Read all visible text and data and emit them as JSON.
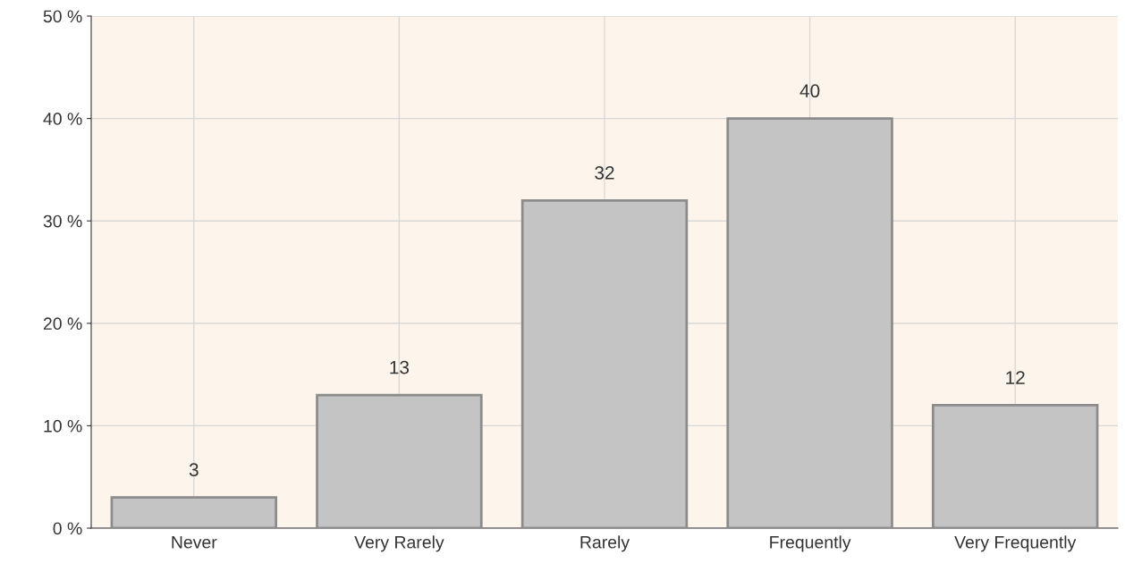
{
  "chart_data": {
    "type": "bar",
    "categories": [
      "Never",
      "Very Rarely",
      "Rarely",
      "Frequently",
      "Very Frequently"
    ],
    "values": [
      3,
      13,
      32,
      40,
      12
    ],
    "color": "#c4c4c4",
    "ylim": [
      0,
      50
    ],
    "yticks": [
      {
        "value": 0,
        "label": "0 %"
      },
      {
        "value": 10,
        "label": "10 %"
      },
      {
        "value": 20,
        "label": "20 %"
      },
      {
        "value": 30,
        "label": "30 %"
      },
      {
        "value": 40,
        "label": "40 %"
      },
      {
        "value": 50,
        "label": "50 %"
      }
    ],
    "grid": true,
    "data_labels": true
  }
}
